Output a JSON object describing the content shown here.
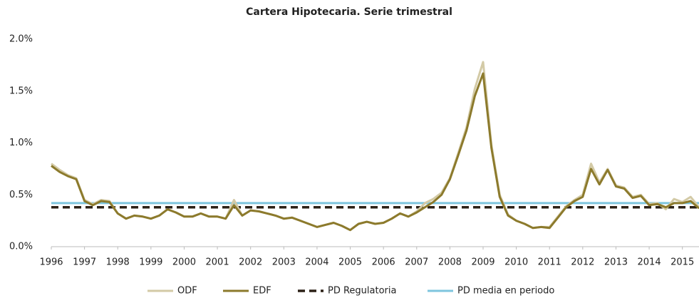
{
  "chart_data": {
    "type": "line",
    "title": "Cartera Hipotecaria. Serie trimestral",
    "x": [
      1996,
      1996.25,
      1996.5,
      1996.75,
      1997,
      1997.25,
      1997.5,
      1997.75,
      1998,
      1998.25,
      1998.5,
      1998.75,
      1999,
      1999.25,
      1999.5,
      1999.75,
      2000,
      2000.25,
      2000.5,
      2000.75,
      2001,
      2001.25,
      2001.5,
      2001.75,
      2002,
      2002.25,
      2002.5,
      2002.75,
      2003,
      2003.25,
      2003.5,
      2003.75,
      2004,
      2004.25,
      2004.5,
      2004.75,
      2005,
      2005.25,
      2005.5,
      2005.75,
      2006,
      2006.25,
      2006.5,
      2006.75,
      2007,
      2007.25,
      2007.5,
      2007.75,
      2008,
      2008.25,
      2008.5,
      2008.75,
      2009,
      2009.25,
      2009.5,
      2009.75,
      2010,
      2010.25,
      2010.5,
      2010.75,
      2011,
      2011.25,
      2011.5,
      2011.75,
      2012,
      2012.25,
      2012.5,
      2012.75,
      2013,
      2013.25,
      2013.5,
      2013.75,
      2014,
      2014.25,
      2014.5,
      2014.75,
      2015,
      2015.25,
      2015.5
    ],
    "series": [
      {
        "name": "ODF",
        "color": "#d3caa6",
        "values": [
          0.8,
          0.74,
          0.69,
          0.66,
          0.45,
          0.41,
          0.45,
          0.44,
          0.32,
          0.27,
          0.3,
          0.29,
          0.27,
          0.3,
          0.36,
          0.33,
          0.29,
          0.29,
          0.32,
          0.29,
          0.29,
          0.27,
          0.45,
          0.3,
          0.35,
          0.34,
          0.32,
          0.3,
          0.27,
          0.28,
          0.25,
          0.22,
          0.19,
          0.21,
          0.23,
          0.2,
          0.16,
          0.22,
          0.24,
          0.22,
          0.23,
          0.27,
          0.32,
          0.29,
          0.34,
          0.42,
          0.46,
          0.52,
          0.66,
          0.9,
          1.15,
          1.52,
          1.78,
          0.98,
          0.5,
          0.31,
          0.25,
          0.22,
          0.18,
          0.19,
          0.19,
          0.29,
          0.39,
          0.45,
          0.5,
          0.8,
          0.62,
          0.75,
          0.59,
          0.57,
          0.48,
          0.5,
          0.41,
          0.42,
          0.36,
          0.46,
          0.43,
          0.48,
          0.38
        ]
      },
      {
        "name": "EDF",
        "color": "#8c7a2c",
        "values": [
          0.78,
          0.72,
          0.68,
          0.65,
          0.44,
          0.4,
          0.44,
          0.43,
          0.32,
          0.27,
          0.3,
          0.29,
          0.27,
          0.3,
          0.36,
          0.33,
          0.29,
          0.29,
          0.32,
          0.29,
          0.29,
          0.27,
          0.4,
          0.3,
          0.35,
          0.34,
          0.32,
          0.3,
          0.27,
          0.28,
          0.25,
          0.22,
          0.19,
          0.21,
          0.23,
          0.2,
          0.16,
          0.22,
          0.24,
          0.22,
          0.23,
          0.27,
          0.32,
          0.29,
          0.33,
          0.38,
          0.43,
          0.5,
          0.65,
          0.88,
          1.12,
          1.45,
          1.67,
          0.95,
          0.48,
          0.3,
          0.25,
          0.22,
          0.18,
          0.19,
          0.18,
          0.28,
          0.38,
          0.44,
          0.48,
          0.75,
          0.6,
          0.74,
          0.58,
          0.56,
          0.47,
          0.49,
          0.4,
          0.41,
          0.38,
          0.42,
          0.42,
          0.44,
          0.37
        ]
      }
    ],
    "reference_lines": [
      {
        "name": "PD Regulatoria",
        "color": "#2b2117",
        "value": 0.38,
        "dashed": true
      },
      {
        "name": "PD media en periodo",
        "color": "#7ec5de",
        "value": 0.42,
        "dashed": false
      }
    ],
    "xlim": [
      1996,
      2015.5
    ],
    "xticks": [
      1996,
      1997,
      1998,
      1999,
      2000,
      2001,
      2002,
      2003,
      2004,
      2005,
      2006,
      2007,
      2008,
      2009,
      2010,
      2011,
      2012,
      2013,
      2014,
      2015
    ],
    "ylim": [
      0,
      2
    ],
    "yticks": [
      {
        "value": 0,
        "label": "0.0%"
      },
      {
        "value": 0.5,
        "label": "0.5%"
      },
      {
        "value": 1,
        "label": "1.0%"
      },
      {
        "value": 1.5,
        "label": "1.5%"
      },
      {
        "value": 2,
        "label": "2.0%"
      }
    ],
    "grid": false,
    "legend": "bottom"
  }
}
